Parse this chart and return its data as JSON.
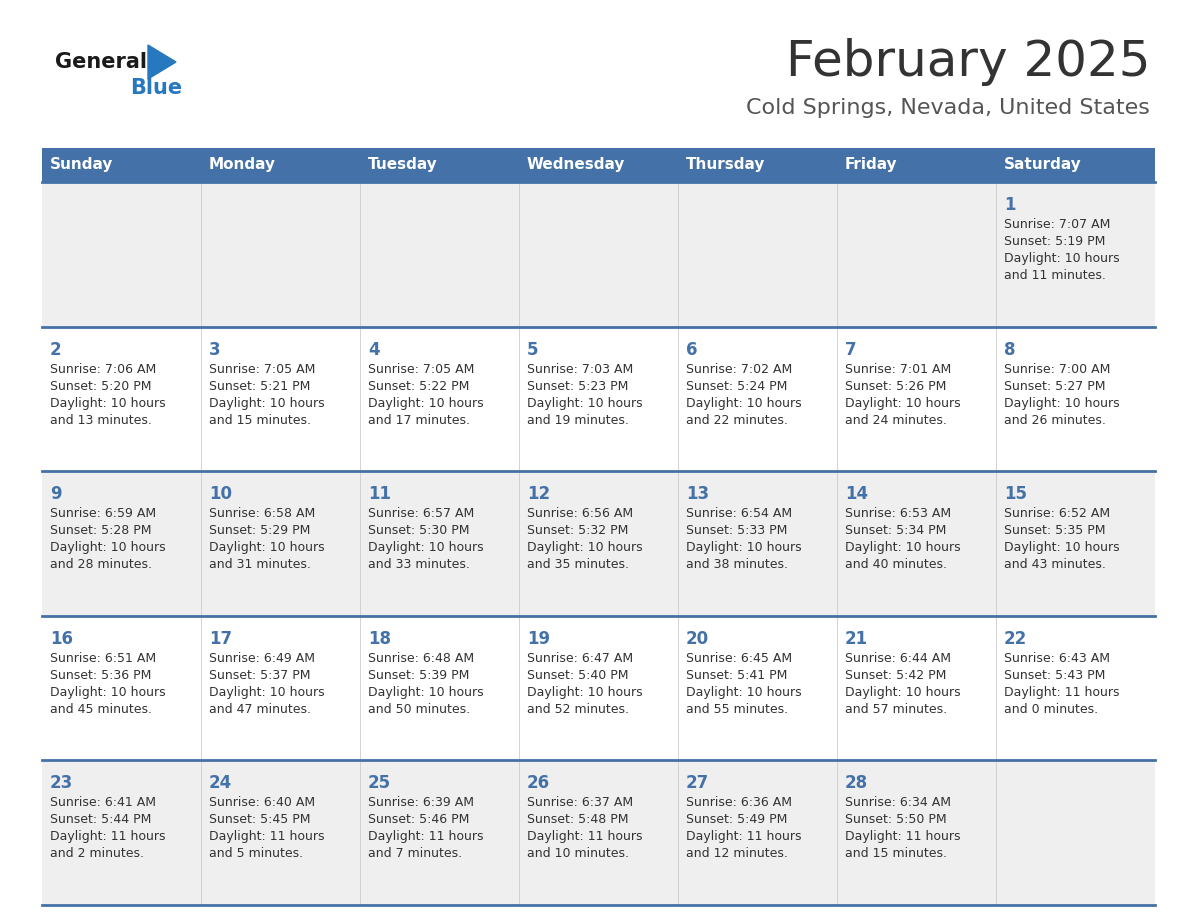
{
  "title": "February 2025",
  "subtitle": "Cold Springs, Nevada, United States",
  "days_of_week": [
    "Sunday",
    "Monday",
    "Tuesday",
    "Wednesday",
    "Thursday",
    "Friday",
    "Saturday"
  ],
  "header_bg": "#4472a8",
  "header_text": "#ffffff",
  "row_bg_light": "#efefef",
  "row_bg_white": "#ffffff",
  "day_num_color": "#4472a8",
  "text_color": "#333333",
  "divider_color": "#4472a8",
  "title_color": "#333333",
  "subtitle_color": "#555555",
  "logo_general_color": "#1a1a1a",
  "logo_blue_color": "#2878c0",
  "calendar_data": [
    [
      null,
      null,
      null,
      null,
      null,
      null,
      {
        "day": 1,
        "sunrise": "7:07 AM",
        "sunset": "5:19 PM",
        "daylight": "10 hours",
        "daylight2": "and 11 minutes."
      }
    ],
    [
      {
        "day": 2,
        "sunrise": "7:06 AM",
        "sunset": "5:20 PM",
        "daylight": "10 hours",
        "daylight2": "and 13 minutes."
      },
      {
        "day": 3,
        "sunrise": "7:05 AM",
        "sunset": "5:21 PM",
        "daylight": "10 hours",
        "daylight2": "and 15 minutes."
      },
      {
        "day": 4,
        "sunrise": "7:05 AM",
        "sunset": "5:22 PM",
        "daylight": "10 hours",
        "daylight2": "and 17 minutes."
      },
      {
        "day": 5,
        "sunrise": "7:03 AM",
        "sunset": "5:23 PM",
        "daylight": "10 hours",
        "daylight2": "and 19 minutes."
      },
      {
        "day": 6,
        "sunrise": "7:02 AM",
        "sunset": "5:24 PM",
        "daylight": "10 hours",
        "daylight2": "and 22 minutes."
      },
      {
        "day": 7,
        "sunrise": "7:01 AM",
        "sunset": "5:26 PM",
        "daylight": "10 hours",
        "daylight2": "and 24 minutes."
      },
      {
        "day": 8,
        "sunrise": "7:00 AM",
        "sunset": "5:27 PM",
        "daylight": "10 hours",
        "daylight2": "and 26 minutes."
      }
    ],
    [
      {
        "day": 9,
        "sunrise": "6:59 AM",
        "sunset": "5:28 PM",
        "daylight": "10 hours",
        "daylight2": "and 28 minutes."
      },
      {
        "day": 10,
        "sunrise": "6:58 AM",
        "sunset": "5:29 PM",
        "daylight": "10 hours",
        "daylight2": "and 31 minutes."
      },
      {
        "day": 11,
        "sunrise": "6:57 AM",
        "sunset": "5:30 PM",
        "daylight": "10 hours",
        "daylight2": "and 33 minutes."
      },
      {
        "day": 12,
        "sunrise": "6:56 AM",
        "sunset": "5:32 PM",
        "daylight": "10 hours",
        "daylight2": "and 35 minutes."
      },
      {
        "day": 13,
        "sunrise": "6:54 AM",
        "sunset": "5:33 PM",
        "daylight": "10 hours",
        "daylight2": "and 38 minutes."
      },
      {
        "day": 14,
        "sunrise": "6:53 AM",
        "sunset": "5:34 PM",
        "daylight": "10 hours",
        "daylight2": "and 40 minutes."
      },
      {
        "day": 15,
        "sunrise": "6:52 AM",
        "sunset": "5:35 PM",
        "daylight": "10 hours",
        "daylight2": "and 43 minutes."
      }
    ],
    [
      {
        "day": 16,
        "sunrise": "6:51 AM",
        "sunset": "5:36 PM",
        "daylight": "10 hours",
        "daylight2": "and 45 minutes."
      },
      {
        "day": 17,
        "sunrise": "6:49 AM",
        "sunset": "5:37 PM",
        "daylight": "10 hours",
        "daylight2": "and 47 minutes."
      },
      {
        "day": 18,
        "sunrise": "6:48 AM",
        "sunset": "5:39 PM",
        "daylight": "10 hours",
        "daylight2": "and 50 minutes."
      },
      {
        "day": 19,
        "sunrise": "6:47 AM",
        "sunset": "5:40 PM",
        "daylight": "10 hours",
        "daylight2": "and 52 minutes."
      },
      {
        "day": 20,
        "sunrise": "6:45 AM",
        "sunset": "5:41 PM",
        "daylight": "10 hours",
        "daylight2": "and 55 minutes."
      },
      {
        "day": 21,
        "sunrise": "6:44 AM",
        "sunset": "5:42 PM",
        "daylight": "10 hours",
        "daylight2": "and 57 minutes."
      },
      {
        "day": 22,
        "sunrise": "6:43 AM",
        "sunset": "5:43 PM",
        "daylight": "11 hours",
        "daylight2": "and 0 minutes."
      }
    ],
    [
      {
        "day": 23,
        "sunrise": "6:41 AM",
        "sunset": "5:44 PM",
        "daylight": "11 hours",
        "daylight2": "and 2 minutes."
      },
      {
        "day": 24,
        "sunrise": "6:40 AM",
        "sunset": "5:45 PM",
        "daylight": "11 hours",
        "daylight2": "and 5 minutes."
      },
      {
        "day": 25,
        "sunrise": "6:39 AM",
        "sunset": "5:46 PM",
        "daylight": "11 hours",
        "daylight2": "and 7 minutes."
      },
      {
        "day": 26,
        "sunrise": "6:37 AM",
        "sunset": "5:48 PM",
        "daylight": "11 hours",
        "daylight2": "and 10 minutes."
      },
      {
        "day": 27,
        "sunrise": "6:36 AM",
        "sunset": "5:49 PM",
        "daylight": "11 hours",
        "daylight2": "and 12 minutes."
      },
      {
        "day": 28,
        "sunrise": "6:34 AM",
        "sunset": "5:50 PM",
        "daylight": "11 hours",
        "daylight2": "and 15 minutes."
      },
      null
    ]
  ],
  "row_bg_colors": [
    "#efefef",
    "#ffffff",
    "#efefef",
    "#ffffff",
    "#efefef"
  ]
}
